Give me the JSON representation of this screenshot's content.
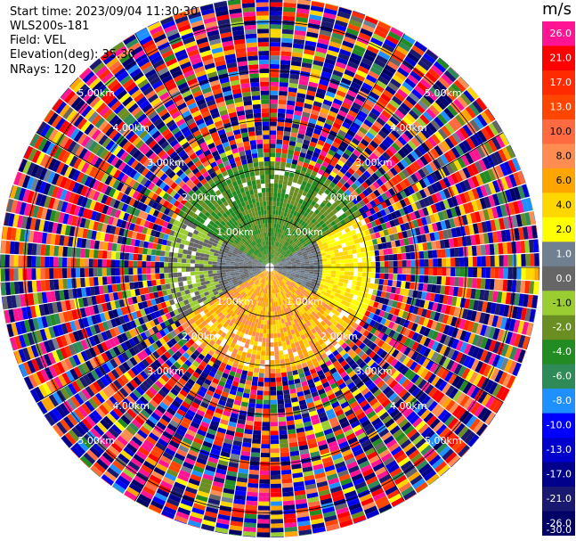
{
  "header": {
    "start_time": "Start time: 2023/09/04 11:30:30",
    "instrument": "WLS200s-181",
    "field": "Field: VEL",
    "elevation": "Elevation(deg): 35.30",
    "nrays": "NRays: 120"
  },
  "colorbar": {
    "unit": "m/s",
    "ticks": [
      "26.0",
      "21.0",
      "17.0",
      "13.0",
      "10.0",
      "8.0",
      "6.0",
      "4.0",
      "2.0",
      "1.0",
      "0.0",
      "-1.0",
      "-2.0",
      "-4.0",
      "-6.0",
      "-8.0",
      "-10.0",
      "-13.0",
      "-17.0",
      "-21.0",
      "-26.0",
      "-30.0"
    ],
    "colors": [
      "#ff1493",
      "#ff0000",
      "#ff2a00",
      "#ff4500",
      "#ff6a40",
      "#ff8c50",
      "#ffa500",
      "#ffd700",
      "#ffff00",
      "#708090",
      "#666666",
      "#9acd32",
      "#6b8e23",
      "#228b22",
      "#2e8b57",
      "#1e90ff",
      "#0000ff",
      "#0000cd",
      "#00008b",
      "#191970",
      "#000066"
    ]
  },
  "chart_data": {
    "type": "heatmap",
    "subtype": "polar PPI scan",
    "field": "VEL",
    "units": "m/s",
    "nrays": 120,
    "range_rings_km": [
      1.0,
      2.0,
      3.0,
      4.0,
      5.0
    ],
    "range_ring_labels": [
      "1.00km",
      "2.00km",
      "3.00km",
      "4.00km",
      "5.00km"
    ],
    "max_range_km": 5.5,
    "colorbar_range": [
      -30,
      26
    ],
    "pattern": {
      "north_sector_0_2km": "-4 to -2 (green / yellow-green)",
      "south_sector_0_2km": "2 to 8 (orange / yellow)",
      "east_west_0_1km": "-1 to 1 (gray)",
      "beyond_2km": "noise, full colour range"
    }
  }
}
